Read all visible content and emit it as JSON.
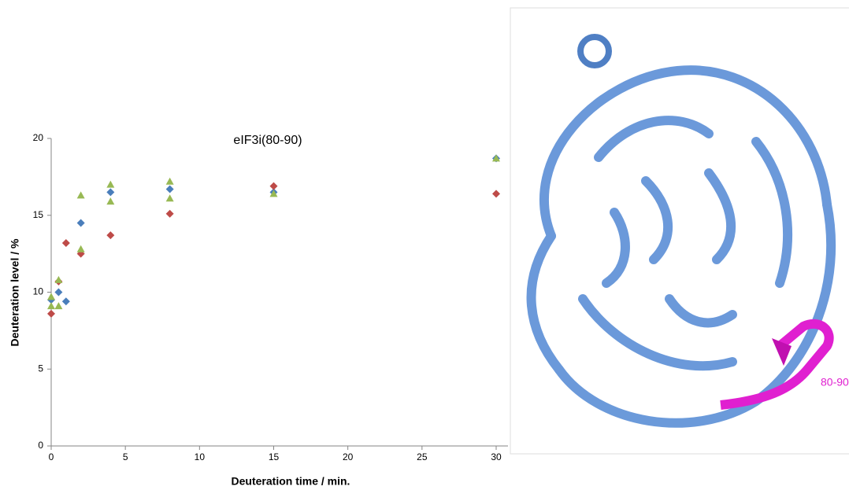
{
  "chart_data": {
    "type": "scatter",
    "title": "eIF3i(80-90)",
    "x_label": "Deuteration time / min.",
    "y_label": "Deuteration level / %",
    "xlim": [
      0,
      30
    ],
    "ylim": [
      0,
      20
    ],
    "xticks": [
      0,
      5,
      10,
      15,
      20,
      25,
      30
    ],
    "yticks": [
      0,
      5,
      10,
      15,
      20
    ],
    "series": [
      {
        "color": "#4a7ebb",
        "marker": "diamond",
        "x": [
          0,
          0.5,
          1,
          2,
          4,
          8,
          15,
          30
        ],
        "values": [
          9.5,
          10.0,
          9.4,
          14.5,
          16.5,
          16.7,
          16.5,
          18.7
        ]
      },
      {
        "color": "#be4b48",
        "marker": "diamond",
        "x": [
          0,
          0.5,
          1,
          2,
          4,
          8,
          15,
          30
        ],
        "values": [
          8.6,
          10.7,
          13.2,
          12.5,
          13.7,
          15.1,
          16.9,
          16.4
        ]
      },
      {
        "color": "#98b954",
        "marker": "triangle",
        "x": [
          0,
          0,
          0.5,
          0.5,
          2,
          2,
          4,
          4,
          8,
          8,
          15,
          30
        ],
        "values": [
          9.7,
          9.1,
          10.8,
          9.1,
          16.3,
          12.8,
          17.0,
          15.9,
          17.2,
          16.1,
          16.4,
          18.7
        ]
      }
    ],
    "annotation": "80-90"
  }
}
